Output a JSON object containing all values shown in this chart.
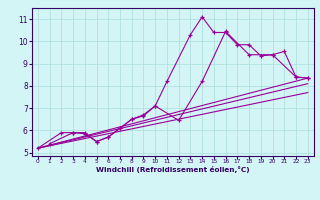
{
  "xlabel": "Windchill (Refroidissement éolien,°C)",
  "bg_color": "#d4f5f5",
  "line_color": "#990099",
  "grid_color": "#aadddd",
  "spine_color": "#330066",
  "xlim": [
    -0.5,
    23.5
  ],
  "ylim": [
    4.85,
    11.5
  ],
  "yticks": [
    5,
    6,
    7,
    8,
    9,
    10,
    11
  ],
  "xticks": [
    0,
    1,
    2,
    3,
    4,
    5,
    6,
    7,
    8,
    9,
    10,
    11,
    12,
    13,
    14,
    15,
    16,
    17,
    18,
    19,
    20,
    21,
    22,
    23
  ],
  "series1_x": [
    0,
    2,
    3,
    4,
    5,
    6,
    7,
    8,
    9,
    10,
    11,
    13,
    14,
    15,
    16,
    17,
    18,
    19,
    20,
    21,
    22,
    23
  ],
  "series1_y": [
    5.2,
    5.9,
    5.9,
    5.9,
    5.5,
    5.7,
    6.1,
    6.5,
    6.7,
    7.1,
    8.2,
    10.3,
    11.1,
    10.4,
    10.4,
    9.85,
    9.85,
    9.35,
    9.4,
    9.55,
    8.4,
    8.35
  ],
  "series2_x": [
    1,
    3,
    4,
    5,
    6,
    7,
    8,
    9,
    10,
    12,
    14,
    16,
    18,
    20,
    22,
    23
  ],
  "series2_y": [
    5.4,
    5.9,
    5.85,
    5.5,
    5.7,
    6.1,
    6.5,
    6.65,
    7.1,
    6.45,
    8.2,
    10.45,
    9.4,
    9.4,
    8.4,
    8.35
  ],
  "line3_x": [
    0,
    23
  ],
  "line3_y": [
    5.2,
    8.35
  ],
  "line4_x": [
    0,
    23
  ],
  "line4_y": [
    5.2,
    7.7
  ],
  "line5_x": [
    0,
    23
  ],
  "line5_y": [
    5.2,
    8.1
  ]
}
